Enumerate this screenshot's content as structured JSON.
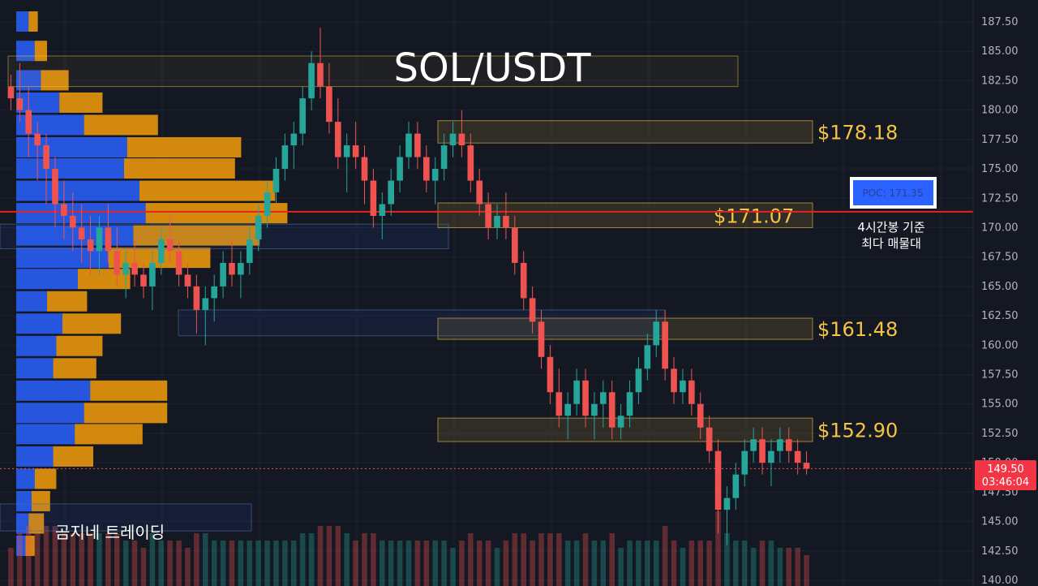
{
  "chart_data": {
    "type": "candlestick",
    "title": "SOL/USDT",
    "ylim": [
      140,
      188.75
    ],
    "y_ticks": [
      "187.50",
      "185.00",
      "182.50",
      "180.00",
      "177.50",
      "175.00",
      "172.50",
      "170.00",
      "167.50",
      "165.00",
      "162.50",
      "160.00",
      "157.50",
      "155.00",
      "152.50",
      "150.00",
      "147.50",
      "145.00",
      "142.50",
      "140.00"
    ],
    "poc": {
      "price": 171.35,
      "label": "POC: 171.35",
      "note_line1": "4시간봉 기준",
      "note_line2": "최다 매물대"
    },
    "zones": [
      {
        "price": 178.18,
        "label": "$178.18",
        "low": 177.2,
        "high": 179.1
      },
      {
        "price": 171.07,
        "label": "$171.07",
        "low": 170.0,
        "high": 172.1
      },
      {
        "price": 161.48,
        "label": "$161.48",
        "low": 160.5,
        "high": 162.3
      },
      {
        "price": 152.9,
        "label": "$152.90",
        "low": 151.8,
        "high": 153.8
      }
    ],
    "current": {
      "price_label": "149.50",
      "price": 149.5,
      "timer": "03:46:04"
    },
    "volume_profile": [
      {
        "price": 187.5,
        "buy": 4,
        "sell": 3
      },
      {
        "price": 185.0,
        "buy": 6,
        "sell": 4
      },
      {
        "price": 182.5,
        "buy": 8,
        "sell": 9
      },
      {
        "price": 180.6,
        "buy": 14,
        "sell": 14
      },
      {
        "price": 178.7,
        "buy": 22,
        "sell": 24
      },
      {
        "price": 176.8,
        "buy": 36,
        "sell": 37
      },
      {
        "price": 175.0,
        "buy": 35,
        "sell": 36
      },
      {
        "price": 173.1,
        "buy": 40,
        "sell": 44
      },
      {
        "price": 171.2,
        "buy": 42,
        "sell": 46
      },
      {
        "price": 169.3,
        "buy": 38,
        "sell": 41
      },
      {
        "price": 167.4,
        "buy": 30,
        "sell": 33
      },
      {
        "price": 165.6,
        "buy": 20,
        "sell": 17
      },
      {
        "price": 163.7,
        "buy": 10,
        "sell": 13
      },
      {
        "price": 161.8,
        "buy": 15,
        "sell": 19
      },
      {
        "price": 159.9,
        "buy": 13,
        "sell": 15
      },
      {
        "price": 158.0,
        "buy": 12,
        "sell": 14
      },
      {
        "price": 156.1,
        "buy": 24,
        "sell": 25
      },
      {
        "price": 154.2,
        "buy": 22,
        "sell": 27
      },
      {
        "price": 152.4,
        "buy": 19,
        "sell": 22
      },
      {
        "price": 150.5,
        "buy": 12,
        "sell": 13
      },
      {
        "price": 148.6,
        "buy": 6,
        "sell": 7
      },
      {
        "price": 146.7,
        "buy": 5,
        "sell": 6
      },
      {
        "price": 144.8,
        "buy": 4,
        "sell": 5
      },
      {
        "price": 142.9,
        "buy": 3,
        "sell": 3
      }
    ],
    "candles": [
      [
        182,
        183,
        180,
        181
      ],
      [
        181,
        184,
        179,
        180
      ],
      [
        180,
        182,
        176,
        178
      ],
      [
        178,
        179,
        174,
        177
      ],
      [
        177,
        178,
        172,
        175
      ],
      [
        175,
        176,
        170,
        172
      ],
      [
        172,
        174,
        169,
        171
      ],
      [
        171,
        173,
        168,
        170
      ],
      [
        170,
        172,
        167,
        169
      ],
      [
        169,
        171,
        166,
        168
      ],
      [
        168,
        171,
        166,
        170
      ],
      [
        170,
        172,
        167,
        168
      ],
      [
        168,
        170,
        165,
        166
      ],
      [
        166,
        168,
        164,
        167
      ],
      [
        167,
        169,
        165,
        166
      ],
      [
        166,
        167,
        164,
        165
      ],
      [
        165,
        168,
        163,
        167
      ],
      [
        167,
        170,
        166,
        169
      ],
      [
        169,
        171,
        167,
        168
      ],
      [
        168,
        169,
        165,
        166
      ],
      [
        166,
        167,
        164,
        165
      ],
      [
        165,
        166,
        161,
        163
      ],
      [
        163,
        165,
        160,
        164
      ],
      [
        164,
        166,
        162,
        165
      ],
      [
        165,
        168,
        164,
        167
      ],
      [
        167,
        169,
        165,
        166
      ],
      [
        166,
        168,
        164,
        167
      ],
      [
        167,
        170,
        166,
        169
      ],
      [
        169,
        172,
        168,
        171
      ],
      [
        171,
        174,
        170,
        173
      ],
      [
        173,
        176,
        172,
        175
      ],
      [
        175,
        178,
        174,
        177
      ],
      [
        177,
        179,
        175,
        178
      ],
      [
        178,
        182,
        177,
        181
      ],
      [
        181,
        185,
        180,
        184
      ],
      [
        184,
        187,
        181,
        182
      ],
      [
        182,
        184,
        178,
        179
      ],
      [
        179,
        181,
        175,
        176
      ],
      [
        176,
        178,
        173,
        177
      ],
      [
        177,
        179,
        175,
        176
      ],
      [
        176,
        177,
        172,
        174
      ],
      [
        174,
        175,
        170,
        171
      ],
      [
        171,
        173,
        169,
        172
      ],
      [
        172,
        175,
        171,
        174
      ],
      [
        174,
        177,
        173,
        176
      ],
      [
        176,
        179,
        175,
        178
      ],
      [
        178,
        179,
        175,
        176
      ],
      [
        176,
        177,
        173,
        174
      ],
      [
        174,
        176,
        172,
        175
      ],
      [
        175,
        178,
        174,
        177
      ],
      [
        177,
        179,
        176,
        178
      ],
      [
        178,
        180,
        176,
        177
      ],
      [
        177,
        178,
        173,
        174
      ],
      [
        174,
        175,
        171,
        172
      ],
      [
        172,
        173,
        169,
        170
      ],
      [
        170,
        172,
        169,
        171
      ],
      [
        171,
        173,
        169,
        170
      ],
      [
        170,
        171,
        166,
        167
      ],
      [
        167,
        168,
        163,
        164
      ],
      [
        164,
        165,
        161,
        162
      ],
      [
        162,
        163,
        158,
        159
      ],
      [
        159,
        160,
        155,
        156
      ],
      [
        156,
        158,
        153,
        154
      ],
      [
        154,
        156,
        152,
        155
      ],
      [
        155,
        158,
        154,
        157
      ],
      [
        157,
        158,
        153,
        154
      ],
      [
        154,
        156,
        152,
        155
      ],
      [
        155,
        157,
        153,
        156
      ],
      [
        156,
        157,
        152,
        153
      ],
      [
        153,
        155,
        152,
        154
      ],
      [
        154,
        157,
        153,
        156
      ],
      [
        156,
        159,
        155,
        158
      ],
      [
        158,
        161,
        157,
        160
      ],
      [
        160,
        163,
        159,
        162
      ],
      [
        162,
        163,
        157,
        158
      ],
      [
        158,
        159,
        155,
        156
      ],
      [
        156,
        158,
        155,
        157
      ],
      [
        157,
        158,
        154,
        155
      ],
      [
        155,
        156,
        152,
        153
      ],
      [
        153,
        154,
        150,
        151
      ],
      [
        151,
        152,
        144,
        146
      ],
      [
        146,
        148,
        143,
        147
      ],
      [
        147,
        150,
        146,
        149
      ],
      [
        149,
        152,
        148,
        151
      ],
      [
        151,
        153,
        150,
        152
      ],
      [
        152,
        153,
        149,
        150
      ],
      [
        150,
        152,
        148,
        151
      ],
      [
        151,
        153,
        150,
        152
      ],
      [
        152,
        153,
        150,
        151
      ],
      [
        151,
        152,
        149,
        150
      ],
      [
        150,
        151,
        149,
        149.5
      ]
    ]
  },
  "brand": {
    "name": "곰지네 트레이딩"
  },
  "colors": {
    "up": "#26a69a",
    "down": "#ef5350",
    "poc_line": "#e3241b",
    "zone": "#f6c343",
    "buy": "#2962ff",
    "sell": "#f59e0b"
  }
}
